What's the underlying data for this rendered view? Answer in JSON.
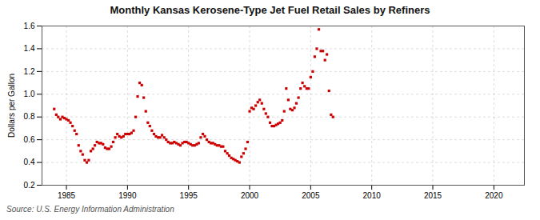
{
  "chart_data": {
    "type": "scatter",
    "title": "Monthly Kansas Kerosene-Type Jet Fuel Retail Sales by Refiners",
    "ylabel": "Dollars per Gallon",
    "source": "Source: U.S. Energy Information Administration",
    "color": "#cc0000",
    "marker": "square",
    "grid": true,
    "xlim": [
      1983.0,
      2022.5
    ],
    "ylim": [
      0.2,
      1.6
    ],
    "xticks": [
      1985,
      1990,
      1995,
      2000,
      2005,
      2010,
      2015,
      2020
    ],
    "yticks": [
      0.2,
      0.4,
      0.6,
      0.8,
      {
        "value": 1,
        "label": "1.0"
      },
      1.2,
      1.4,
      1.6
    ],
    "x": [
      1984.0,
      1984.17,
      1984.33,
      1984.5,
      1984.67,
      1984.83,
      1985.0,
      1985.17,
      1985.33,
      1985.5,
      1985.67,
      1985.83,
      1986.0,
      1986.17,
      1986.33,
      1986.5,
      1986.67,
      1986.83,
      1987.0,
      1987.17,
      1987.33,
      1987.5,
      1987.67,
      1987.83,
      1988.0,
      1988.17,
      1988.33,
      1988.5,
      1988.67,
      1988.83,
      1989.0,
      1989.17,
      1989.33,
      1989.5,
      1989.67,
      1989.83,
      1990.0,
      1990.17,
      1990.33,
      1990.5,
      1990.67,
      1990.83,
      1991.0,
      1991.17,
      1991.33,
      1991.5,
      1991.67,
      1991.83,
      1992.0,
      1992.17,
      1992.33,
      1992.5,
      1992.67,
      1992.83,
      1993.0,
      1993.17,
      1993.33,
      1993.5,
      1993.67,
      1993.83,
      1994.0,
      1994.17,
      1994.33,
      1994.5,
      1994.67,
      1994.83,
      1995.0,
      1995.17,
      1995.33,
      1995.5,
      1995.67,
      1995.83,
      1996.0,
      1996.17,
      1996.33,
      1996.5,
      1996.67,
      1996.83,
      1997.0,
      1997.17,
      1997.33,
      1997.5,
      1997.67,
      1997.83,
      1998.0,
      1998.17,
      1998.33,
      1998.5,
      1998.67,
      1998.83,
      1999.0,
      1999.17,
      1999.33,
      1999.5,
      1999.67,
      1999.83,
      2000.0,
      2000.17,
      2000.33,
      2000.5,
      2000.67,
      2000.83,
      2001.0,
      2001.17,
      2001.33,
      2001.5,
      2001.67,
      2001.83,
      2002.0,
      2002.17,
      2002.33,
      2002.5,
      2002.67,
      2002.83,
      2003.0,
      2003.17,
      2003.33,
      2003.5,
      2003.67,
      2003.83,
      2004.0,
      2004.17,
      2004.33,
      2004.5,
      2004.67,
      2004.83,
      2005.0,
      2005.17,
      2005.33,
      2005.5,
      2005.67,
      2005.83,
      2006.0,
      2006.17,
      2006.33,
      2006.5,
      2006.67,
      2006.83
    ],
    "values": [
      0.87,
      0.82,
      0.8,
      0.78,
      0.8,
      0.79,
      0.78,
      0.77,
      0.75,
      0.72,
      0.68,
      0.65,
      0.55,
      0.5,
      0.47,
      0.42,
      0.4,
      0.42,
      0.5,
      0.52,
      0.55,
      0.58,
      0.57,
      0.57,
      0.56,
      0.53,
      0.52,
      0.52,
      0.54,
      0.58,
      0.62,
      0.65,
      0.63,
      0.62,
      0.63,
      0.65,
      0.65,
      0.65,
      0.66,
      0.68,
      0.8,
      0.98,
      1.1,
      1.08,
      0.97,
      0.85,
      0.75,
      0.72,
      0.68,
      0.65,
      0.63,
      0.62,
      0.62,
      0.64,
      0.62,
      0.6,
      0.58,
      0.57,
      0.57,
      0.58,
      0.57,
      0.56,
      0.55,
      0.57,
      0.58,
      0.58,
      0.57,
      0.56,
      0.55,
      0.55,
      0.56,
      0.57,
      0.62,
      0.65,
      0.63,
      0.6,
      0.58,
      0.57,
      0.57,
      0.56,
      0.55,
      0.55,
      0.54,
      0.54,
      0.5,
      0.48,
      0.46,
      0.44,
      0.43,
      0.42,
      0.41,
      0.4,
      0.45,
      0.48,
      0.52,
      0.58,
      0.85,
      0.88,
      0.87,
      0.9,
      0.93,
      0.95,
      0.92,
      0.87,
      0.83,
      0.8,
      0.75,
      0.72,
      0.72,
      0.73,
      0.74,
      0.75,
      0.77,
      0.85,
      1.05,
      0.95,
      0.87,
      0.86,
      0.88,
      0.92,
      0.97,
      1.05,
      1.1,
      1.07,
      1.05,
      1.05,
      1.15,
      1.2,
      1.33,
      1.4,
      1.57,
      1.38,
      1.38,
      1.3,
      1.35,
      1.03,
      0.82,
      0.8
    ]
  }
}
